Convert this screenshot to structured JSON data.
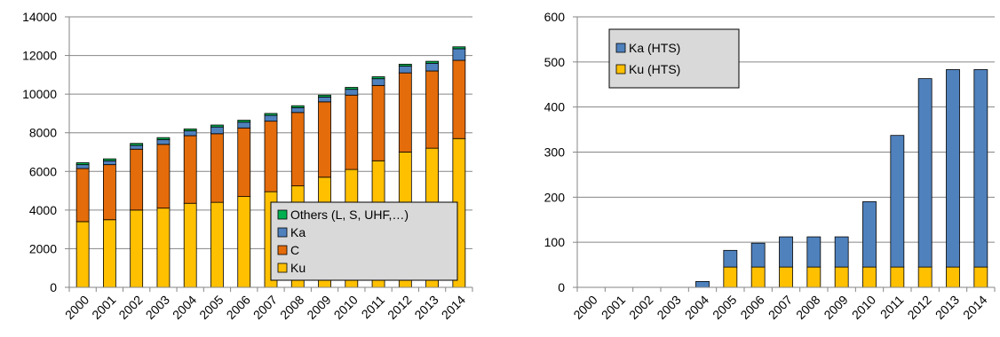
{
  "chart_data": [
    {
      "type": "bar",
      "stacked": true,
      "categories": [
        "2000",
        "2001",
        "2002",
        "2003",
        "2004",
        "2005",
        "2006",
        "2007",
        "2008",
        "2009",
        "2010",
        "2011",
        "2012",
        "2013",
        "2014"
      ],
      "series": [
        {
          "name": "Ku",
          "color": "#ffc000",
          "values": [
            3400,
            3500,
            4000,
            4100,
            4350,
            4400,
            4700,
            4950,
            5250,
            5700,
            6100,
            6550,
            7000,
            7200,
            7700
          ]
        },
        {
          "name": "C",
          "color": "#e46c0a",
          "values": [
            2750,
            2850,
            3150,
            3300,
            3500,
            3550,
            3550,
            3650,
            3800,
            3900,
            3850,
            3900,
            4100,
            4000,
            4050
          ]
        },
        {
          "name": "Ka",
          "color": "#4f81bd",
          "values": [
            200,
            200,
            200,
            250,
            250,
            350,
            300,
            300,
            250,
            250,
            300,
            350,
            350,
            400,
            600
          ]
        },
        {
          "name": "Others (L, S, UHF,…)",
          "color": "#00b050",
          "values": [
            100,
            100,
            100,
            100,
            100,
            100,
            100,
            100,
            100,
            100,
            100,
            100,
            100,
            100,
            100
          ]
        }
      ],
      "ylim": [
        0,
        14000
      ],
      "yticks": [
        "0",
        "2000",
        "4000",
        "6000",
        "8000",
        "10000",
        "12000",
        "14000"
      ],
      "legend": [
        "Others (L, S, UHF,…)",
        "Ka",
        "C",
        "Ku"
      ],
      "legend_position": "bottom-right"
    },
    {
      "type": "bar",
      "stacked": true,
      "categories": [
        "2000",
        "2001",
        "2002",
        "2003",
        "2004",
        "2005",
        "2006",
        "2007",
        "2008",
        "2009",
        "2010",
        "2011",
        "2012",
        "2013",
        "2014"
      ],
      "series": [
        {
          "name": "Ku (HTS)",
          "color": "#ffc000",
          "values": [
            0,
            0,
            0,
            0,
            0,
            45,
            45,
            45,
            45,
            45,
            45,
            45,
            45,
            45,
            45
          ]
        },
        {
          "name": "Ka (HTS)",
          "color": "#4f81bd",
          "values": [
            0,
            0,
            0,
            0,
            13,
            37,
            53,
            67,
            67,
            67,
            145,
            292,
            418,
            438,
            438
          ]
        }
      ],
      "ylim": [
        0,
        600
      ],
      "yticks": [
        "0",
        "100",
        "200",
        "300",
        "400",
        "500",
        "600"
      ],
      "legend": [
        "Ka (HTS)",
        "Ku (HTS)"
      ],
      "legend_position": "top-left"
    }
  ]
}
